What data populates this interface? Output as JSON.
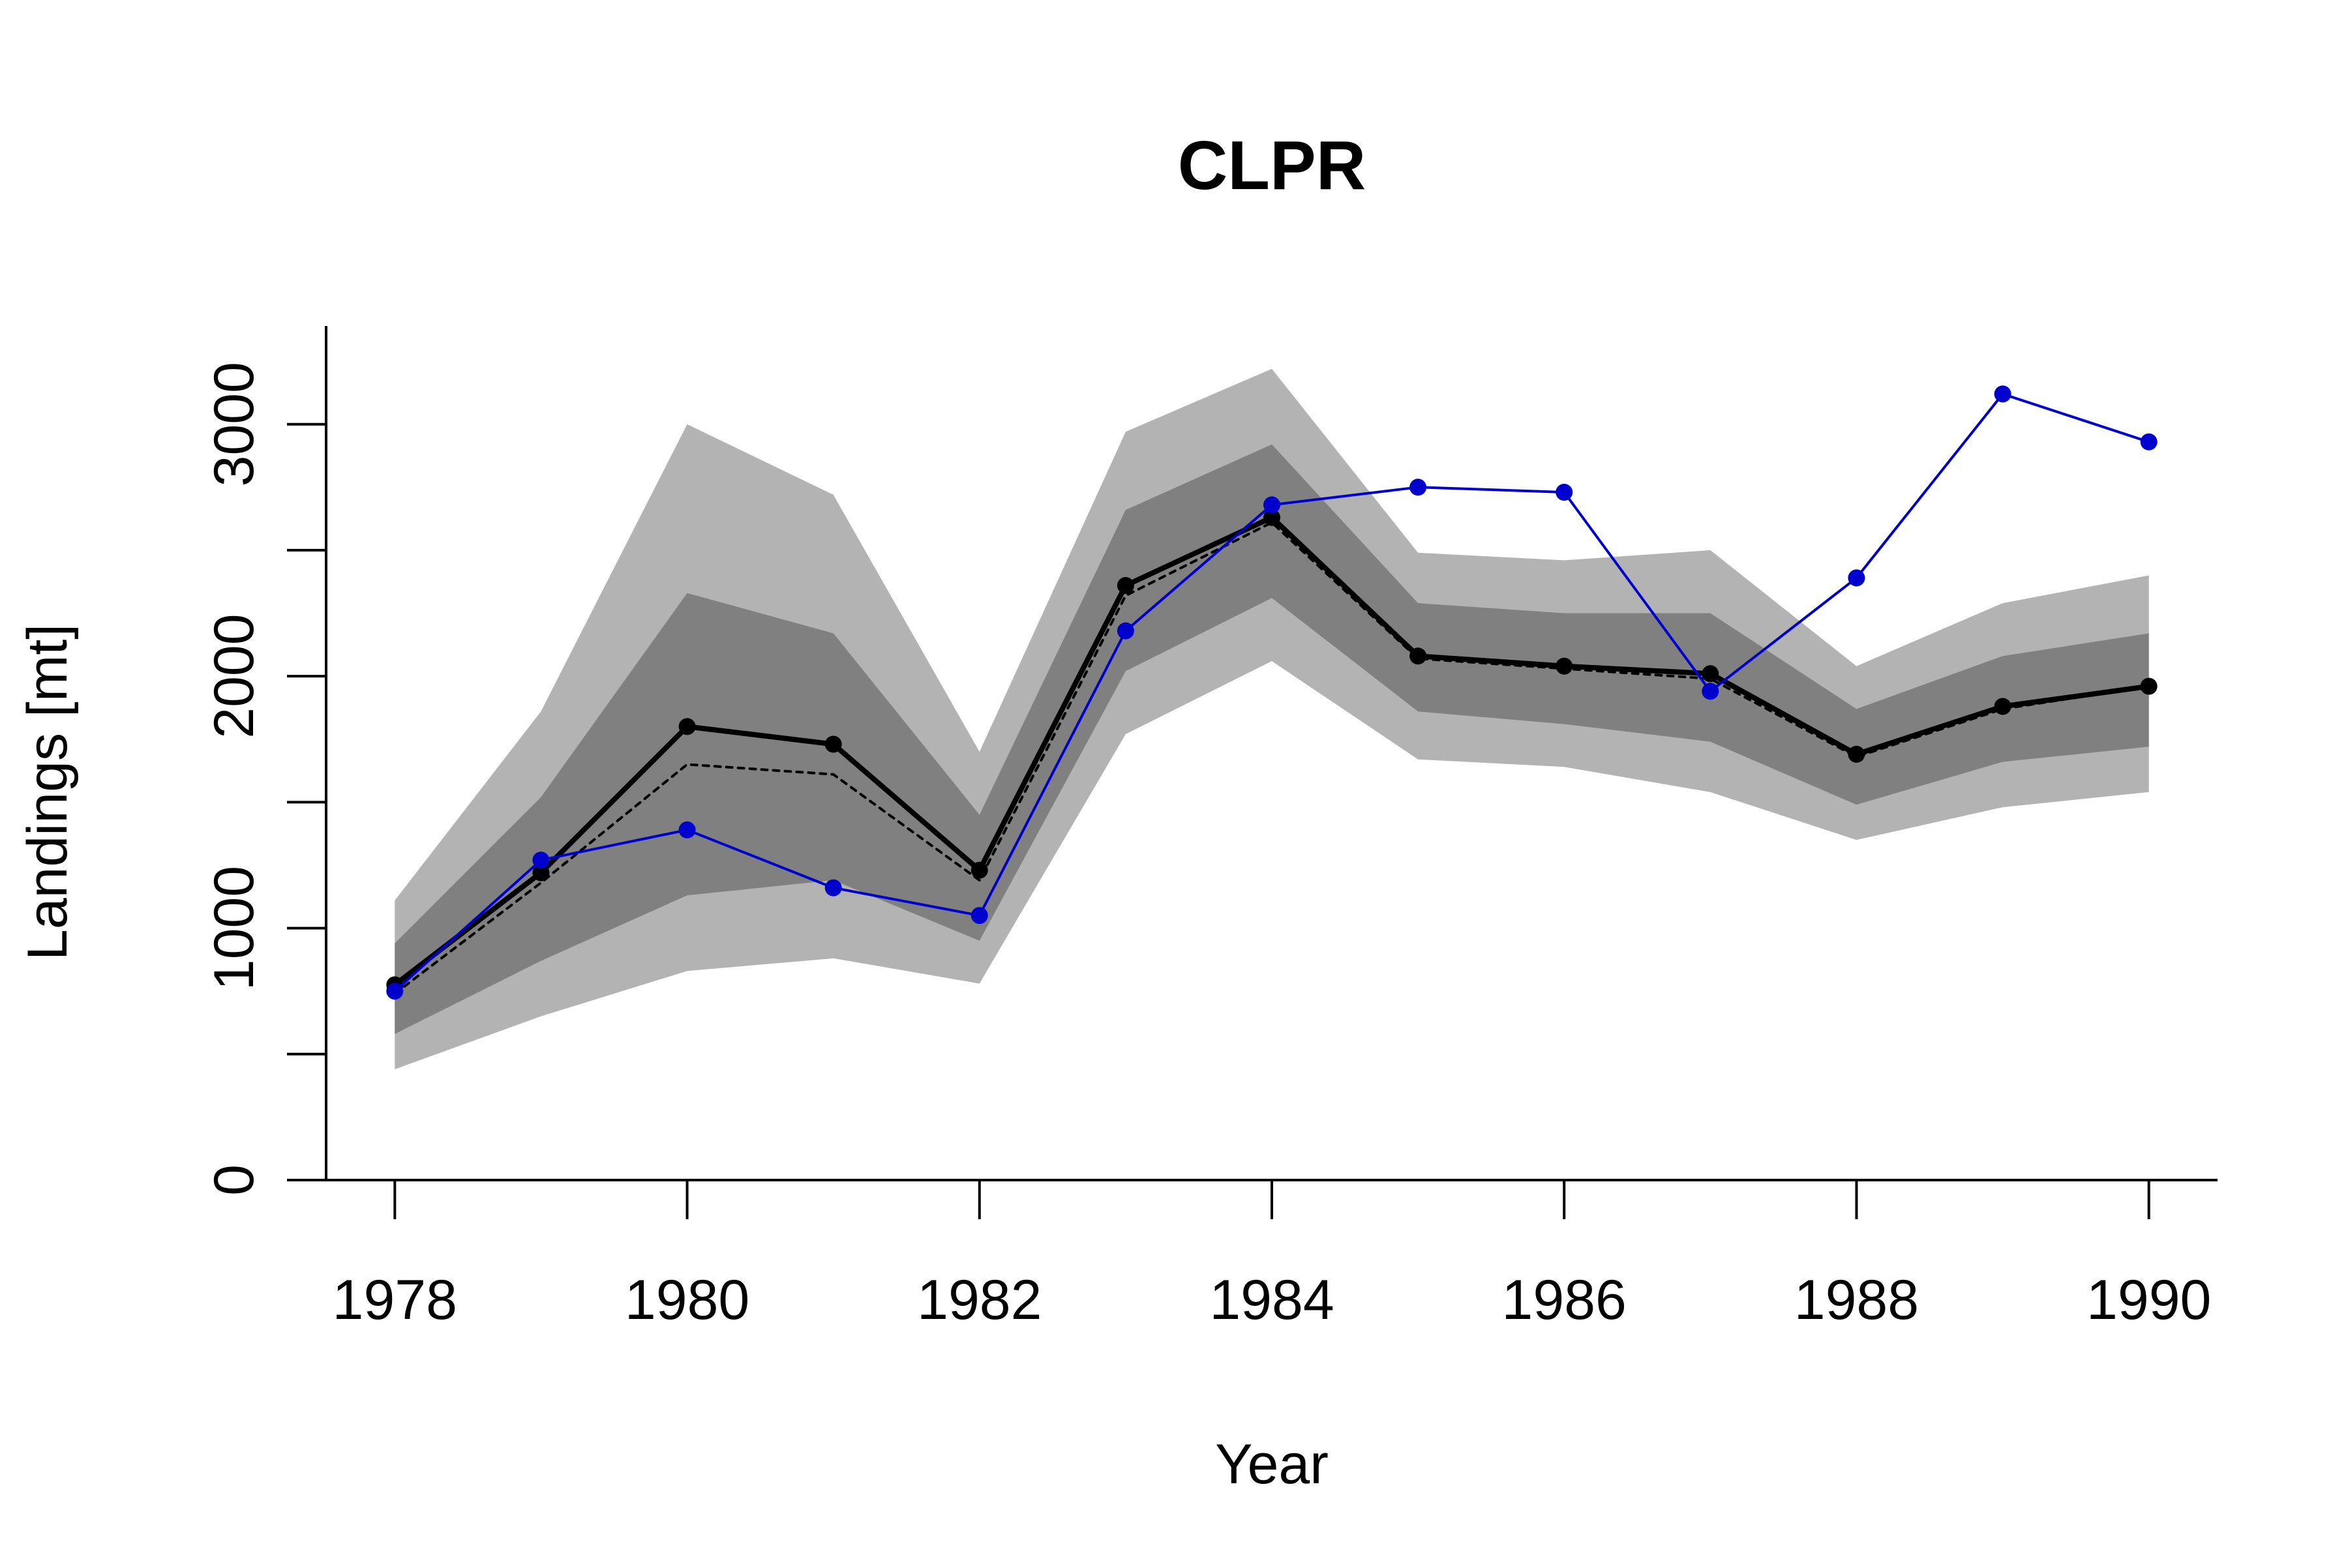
{
  "chart_data": {
    "type": "line",
    "title": "CLPR",
    "xlabel": "Year",
    "ylabel": "Landings [mt]",
    "xlim": [
      1977.53,
      1990.47
    ],
    "ylim": [
      0,
      3390
    ],
    "x_ticks": [
      1978,
      1980,
      1982,
      1984,
      1986,
      1988,
      1990
    ],
    "y_ticks": [
      0,
      500,
      1000,
      1500,
      2000,
      2500,
      3000
    ],
    "y_tick_labels": [
      "0",
      "1000",
      "2000",
      "3000"
    ],
    "x": [
      1978,
      1979,
      1980,
      1981,
      1982,
      1983,
      1984,
      1985,
      1986,
      1987,
      1988,
      1989,
      1990
    ],
    "bands": [
      {
        "level": "outer",
        "color": "#b3b3b3",
        "lower": [
          440,
          650,
          830,
          880,
          780,
          1770,
          2060,
          1670,
          1640,
          1540,
          1350,
          1480,
          1540
        ],
        "upper": [
          1110,
          1860,
          3000,
          2720,
          1700,
          2970,
          3220,
          2490,
          2460,
          2500,
          2040,
          2290,
          2400
        ]
      },
      {
        "level": "inner",
        "color": "#808080",
        "lower": [
          580,
          870,
          1130,
          1190,
          950,
          2020,
          2310,
          1860,
          1810,
          1740,
          1490,
          1660,
          1720
        ],
        "upper": [
          940,
          1520,
          2330,
          2170,
          1450,
          2660,
          2920,
          2290,
          2250,
          2250,
          1870,
          2080,
          2170
        ]
      }
    ],
    "series": [
      {
        "style": "thick-solid",
        "color": "#000000",
        "markers": true,
        "values": [
          775,
          1220,
          1800,
          1730,
          1230,
          2360,
          2630,
          2080,
          2040,
          2010,
          1690,
          1880,
          1960
        ]
      },
      {
        "style": "dotted",
        "color": "#000000",
        "markers": false,
        "values": [
          740,
          1180,
          1650,
          1610,
          1190,
          2320,
          2610,
          2070,
          2030,
          1990,
          1680,
          1870,
          1960
        ]
      },
      {
        "style": "thin-solid",
        "color": "#0000cd",
        "markers": true,
        "values": [
          750,
          1270,
          1390,
          1160,
          1050,
          2180,
          2680,
          2750,
          2730,
          1940,
          2390,
          3120,
          2930
        ]
      }
    ]
  }
}
